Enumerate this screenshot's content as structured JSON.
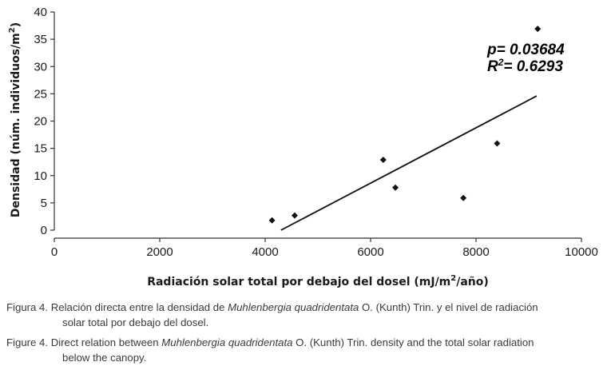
{
  "chart_data": {
    "type": "scatter",
    "xlabel_parts": [
      "Radiación solar total por debajo del dosel (mJ/m",
      "2",
      "/año)"
    ],
    "ylabel_parts": [
      "Densidad (núm. individuos/m",
      "2",
      ")"
    ],
    "xlim": [
      0,
      10000
    ],
    "ylim": [
      0,
      40
    ],
    "xticks": [
      0,
      2000,
      4000,
      6000,
      8000,
      10000
    ],
    "yticks": [
      0,
      5,
      10,
      15,
      20,
      25,
      30,
      35,
      40
    ],
    "points": [
      {
        "x": 4130,
        "y": 1.8
      },
      {
        "x": 4560,
        "y": 2.7
      },
      {
        "x": 6240,
        "y": 12.9
      },
      {
        "x": 6470,
        "y": 7.8
      },
      {
        "x": 7760,
        "y": 5.9
      },
      {
        "x": 8400,
        "y": 15.9
      },
      {
        "x": 9170,
        "y": 36.9
      }
    ],
    "trendline": {
      "x": [
        4300,
        9150
      ],
      "y": [
        0,
        24.6
      ]
    },
    "annotation_p": "p= 0.03684",
    "annotation_r2_prefix": "R",
    "annotation_r2_sup": "2",
    "annotation_r2_value": "= 0.6293",
    "marker_color": "#111111",
    "line_color": "#111111"
  },
  "caption": {
    "es": {
      "prefix": "Figura 4. Relación directa entre la densidad de ",
      "species": "Muhlenbergia quadridentata",
      "suffix": " O. (Kunth) Trin. y el nivel de radiación",
      "line2": "solar total por debajo del dosel."
    },
    "en": {
      "prefix": "Figure 4. Direct relation between ",
      "species": "Muhlenbergia quadridentata",
      "suffix": " O. (Kunth) Trin. density and the total solar radiation",
      "line2": "below the canopy."
    }
  }
}
